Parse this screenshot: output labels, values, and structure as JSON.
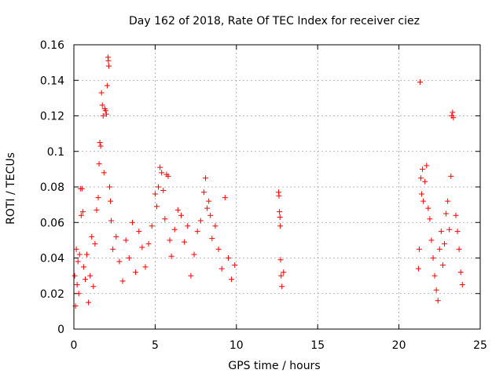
{
  "chart_data": {
    "type": "scatter",
    "title": "Day 162 of 2018, Rate Of TEC Index for receiver ciez",
    "xlabel": "GPS time / hours",
    "ylabel": "ROTI / TECUs",
    "xlim": [
      0,
      25
    ],
    "ylim": [
      0,
      0.16
    ],
    "grid": true,
    "marker": "+",
    "x_ticks": [
      0,
      5,
      10,
      15,
      20,
      25
    ],
    "x_tick_labels": [
      "0",
      "5",
      "10",
      "15",
      "20",
      "25"
    ],
    "y_ticks": [
      0,
      0.02,
      0.04,
      0.06,
      0.08,
      0.1,
      0.12,
      0.14,
      0.16
    ],
    "y_tick_labels": [
      "0",
      "0.02",
      "0.04",
      "0.06",
      "0.08",
      "0.1",
      "0.12",
      "0.14",
      "0.16"
    ],
    "color": "#ff0000",
    "series": [
      {
        "name": "ROTI",
        "points": [
          [
            0.05,
            0.03
          ],
          [
            0.1,
            0.013
          ],
          [
            0.15,
            0.045
          ],
          [
            0.2,
            0.025
          ],
          [
            0.25,
            0.038
          ],
          [
            0.3,
            0.02
          ],
          [
            0.35,
            0.042
          ],
          [
            0.4,
            0.079
          ],
          [
            0.45,
            0.064
          ],
          [
            0.5,
            0.079
          ],
          [
            0.55,
            0.066
          ],
          [
            0.6,
            0.035
          ],
          [
            0.7,
            0.028
          ],
          [
            0.8,
            0.042
          ],
          [
            0.9,
            0.015
          ],
          [
            1.0,
            0.03
          ],
          [
            1.1,
            0.052
          ],
          [
            1.2,
            0.024
          ],
          [
            1.3,
            0.048
          ],
          [
            1.4,
            0.067
          ],
          [
            1.5,
            0.074
          ],
          [
            1.55,
            0.093
          ],
          [
            1.6,
            0.105
          ],
          [
            1.65,
            0.103
          ],
          [
            1.7,
            0.133
          ],
          [
            1.75,
            0.126
          ],
          [
            1.8,
            0.12
          ],
          [
            1.85,
            0.088
          ],
          [
            1.9,
            0.124
          ],
          [
            1.95,
            0.123
          ],
          [
            2.0,
            0.121
          ],
          [
            2.05,
            0.137
          ],
          [
            2.1,
            0.153
          ],
          [
            2.12,
            0.151
          ],
          [
            2.15,
            0.148
          ],
          [
            2.2,
            0.08
          ],
          [
            2.25,
            0.072
          ],
          [
            2.3,
            0.061
          ],
          [
            2.4,
            0.045
          ],
          [
            2.6,
            0.052
          ],
          [
            2.8,
            0.038
          ],
          [
            3.0,
            0.027
          ],
          [
            3.2,
            0.05
          ],
          [
            3.4,
            0.04
          ],
          [
            3.6,
            0.06
          ],
          [
            3.8,
            0.032
          ],
          [
            4.0,
            0.055
          ],
          [
            4.2,
            0.046
          ],
          [
            4.4,
            0.035
          ],
          [
            4.6,
            0.048
          ],
          [
            4.8,
            0.058
          ],
          [
            5.0,
            0.076
          ],
          [
            5.1,
            0.069
          ],
          [
            5.2,
            0.08
          ],
          [
            5.3,
            0.091
          ],
          [
            5.4,
            0.088
          ],
          [
            5.5,
            0.078
          ],
          [
            5.6,
            0.062
          ],
          [
            5.7,
            0.087
          ],
          [
            5.8,
            0.086
          ],
          [
            5.9,
            0.05
          ],
          [
            6.0,
            0.041
          ],
          [
            6.2,
            0.056
          ],
          [
            6.4,
            0.067
          ],
          [
            6.6,
            0.064
          ],
          [
            6.8,
            0.049
          ],
          [
            7.0,
            0.058
          ],
          [
            7.2,
            0.03
          ],
          [
            7.4,
            0.042
          ],
          [
            7.6,
            0.055
          ],
          [
            7.8,
            0.061
          ],
          [
            8.0,
            0.077
          ],
          [
            8.1,
            0.085
          ],
          [
            8.2,
            0.068
          ],
          [
            8.3,
            0.072
          ],
          [
            8.4,
            0.064
          ],
          [
            8.5,
            0.051
          ],
          [
            8.7,
            0.058
          ],
          [
            8.9,
            0.045
          ],
          [
            9.1,
            0.034
          ],
          [
            9.3,
            0.074
          ],
          [
            9.5,
            0.04
          ],
          [
            9.7,
            0.028
          ],
          [
            9.9,
            0.036
          ],
          [
            12.6,
            0.077
          ],
          [
            12.62,
            0.075
          ],
          [
            12.65,
            0.066
          ],
          [
            12.68,
            0.063
          ],
          [
            12.7,
            0.058
          ],
          [
            12.72,
            0.039
          ],
          [
            12.75,
            0.03
          ],
          [
            12.8,
            0.024
          ],
          [
            12.9,
            0.032
          ],
          [
            21.2,
            0.034
          ],
          [
            21.25,
            0.045
          ],
          [
            21.3,
            0.139
          ],
          [
            21.35,
            0.085
          ],
          [
            21.4,
            0.076
          ],
          [
            21.45,
            0.09
          ],
          [
            21.5,
            0.072
          ],
          [
            21.6,
            0.083
          ],
          [
            21.7,
            0.092
          ],
          [
            21.8,
            0.068
          ],
          [
            21.9,
            0.062
          ],
          [
            22.0,
            0.05
          ],
          [
            22.1,
            0.04
          ],
          [
            22.2,
            0.03
          ],
          [
            22.3,
            0.022
          ],
          [
            22.4,
            0.016
          ],
          [
            22.5,
            0.045
          ],
          [
            22.6,
            0.055
          ],
          [
            22.7,
            0.036
          ],
          [
            22.8,
            0.048
          ],
          [
            22.9,
            0.065
          ],
          [
            23.0,
            0.072
          ],
          [
            23.1,
            0.056
          ],
          [
            23.2,
            0.086
          ],
          [
            23.25,
            0.12
          ],
          [
            23.3,
            0.122
          ],
          [
            23.35,
            0.119
          ],
          [
            23.5,
            0.064
          ],
          [
            23.6,
            0.055
          ],
          [
            23.7,
            0.045
          ],
          [
            23.8,
            0.032
          ],
          [
            23.9,
            0.025
          ]
        ]
      }
    ]
  }
}
